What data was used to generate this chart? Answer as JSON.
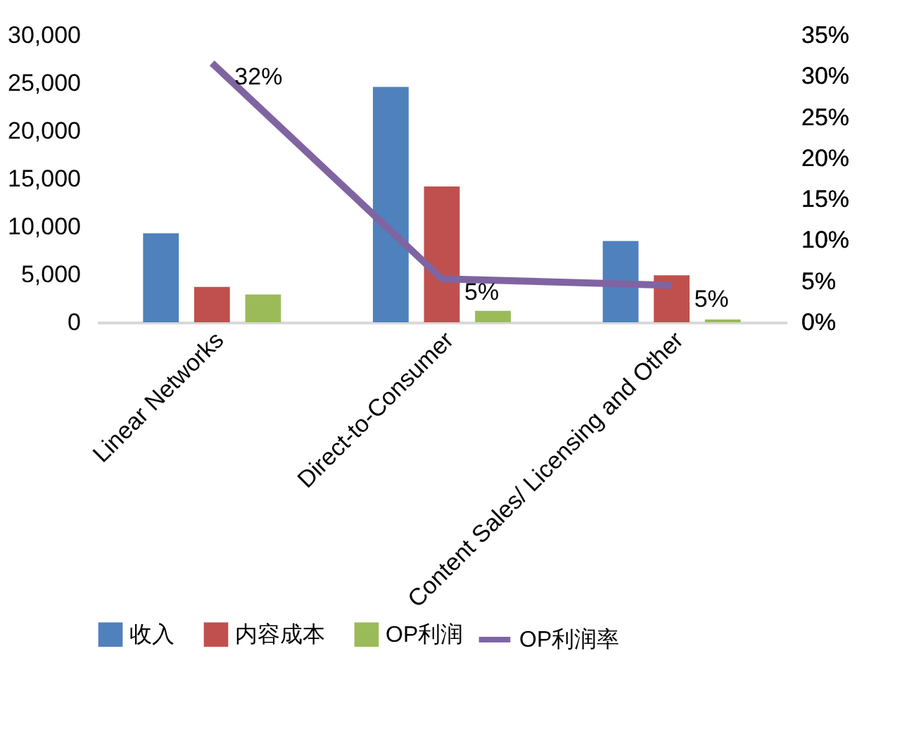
{
  "chart_data": {
    "type": "bar",
    "categories": [
      "Linear Networks",
      "Direct-to-Consumer",
      "Content Sales/ Licensing and Other"
    ],
    "series": [
      {
        "name": "收入",
        "color": "#4f81bd",
        "values": [
          9300,
          24600,
          8500
        ]
      },
      {
        "name": "内容成本",
        "color": "#c0504d",
        "values": [
          3700,
          14200,
          4900
        ]
      },
      {
        "name": "OP利润",
        "color": "#9bbb59",
        "values": [
          2900,
          1200,
          300
        ]
      },
      {
        "name": "OP利润率",
        "type": "line",
        "axis": "y2",
        "color": "#8064a2",
        "values": [
          31.6,
          5.3,
          4.5
        ],
        "value_labels": [
          "32%",
          "5%",
          "5%"
        ]
      }
    ],
    "ylim": [
      0,
      30000
    ],
    "yticks": [
      {
        "value": 0,
        "label": "0"
      },
      {
        "value": 5000,
        "label": "5,000"
      },
      {
        "value": 10000,
        "label": "10,000"
      },
      {
        "value": 15000,
        "label": "15,000"
      },
      {
        "value": 20000,
        "label": "20,000"
      },
      {
        "value": 25000,
        "label": "25,000"
      },
      {
        "value": 30000,
        "label": "30,000"
      }
    ],
    "y2lim": [
      0,
      35
    ],
    "y2ticks": [
      {
        "value": 0,
        "label": "0%"
      },
      {
        "value": 5,
        "label": "5%"
      },
      {
        "value": 10,
        "label": "10%"
      },
      {
        "value": 15,
        "label": "15%"
      },
      {
        "value": 20,
        "label": "20%"
      },
      {
        "value": 25,
        "label": "25%"
      },
      {
        "value": 30,
        "label": "30%"
      },
      {
        "value": 35,
        "label": "35%"
      }
    ],
    "grid": false,
    "legend": "bottom",
    "marker": "none",
    "line_style": "solid"
  }
}
